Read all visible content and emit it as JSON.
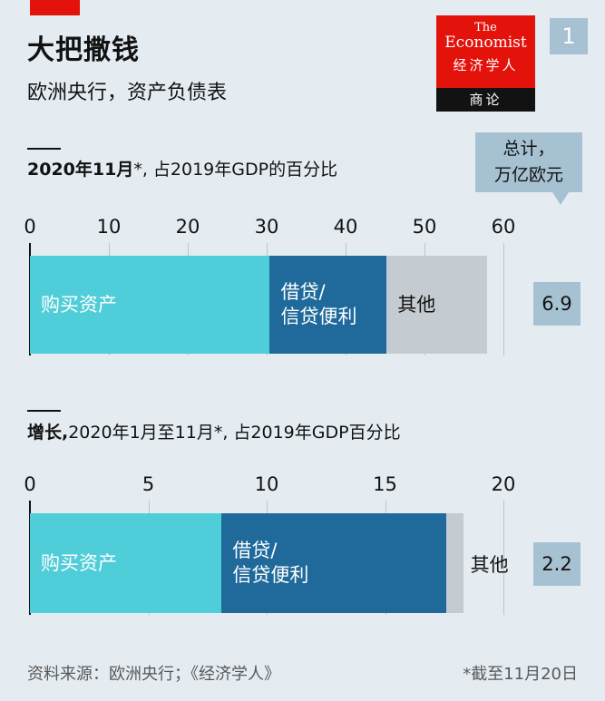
{
  "header": {
    "title": "大把撒钱",
    "subtitle": "欧洲央行，资产负债表",
    "chart_number": "1"
  },
  "logo": {
    "line1": "The",
    "line2": "Economist",
    "line3": "经济学人",
    "line4": "商论"
  },
  "totals_label": [
    "总计，",
    "万亿欧元"
  ],
  "footer": {
    "source": "资料来源：欧洲央行；《经济学人》",
    "note": "*截至11月20日"
  },
  "colors": {
    "purchases": "#4fcdd8",
    "lending": "#1f6a9b",
    "other": "#c5ccd1",
    "background": "#e5ecf1",
    "accent_red": "#e3120b"
  },
  "chart_data": [
    {
      "type": "bar",
      "orientation": "horizontal-stacked",
      "title_bold": "2020年11月",
      "title_rest": "*, 占2019年GDP的百分比",
      "xlim": [
        0,
        60
      ],
      "ticks": [
        0,
        10,
        20,
        30,
        40,
        50,
        60
      ],
      "series": [
        {
          "name": "购买资产",
          "value": 30.4
        },
        {
          "name": "借贷/\n信贷便利",
          "value": 14.8
        },
        {
          "name": "其他",
          "value": 12.7
        }
      ],
      "total": "6.9"
    },
    {
      "type": "bar",
      "orientation": "horizontal-stacked",
      "title_bold": "增长,",
      "title_rest": "2020年1月至11月*, 占2019年GDP百分比",
      "xlim": [
        0,
        20
      ],
      "ticks": [
        0,
        5,
        10,
        15,
        20
      ],
      "series": [
        {
          "name": "购买资产",
          "value": 8.1
        },
        {
          "name": "借贷/\n信贷便利",
          "value": 9.5
        },
        {
          "name": "其他",
          "value": 0.7
        }
      ],
      "total": "2.2"
    }
  ]
}
